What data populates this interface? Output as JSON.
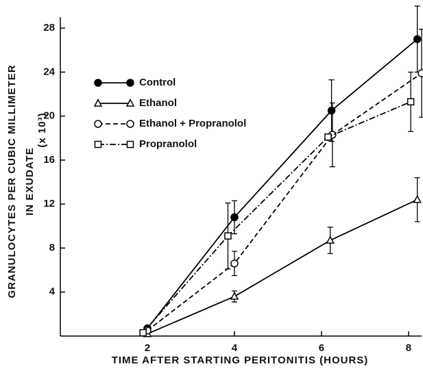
{
  "chart_data": {
    "type": "line",
    "ylabel": [
      "GRANULOCYTES PER CUBIC MILLIMETER",
      "IN EXUDATE"
    ],
    "yunit": "(x 10³)",
    "xlabel": "TIME AFTER STARTING PERITONITIS (HOURS)",
    "xlim": [
      0,
      8.3
    ],
    "ylim": [
      0,
      29
    ],
    "xticks": [
      2,
      4,
      6,
      8
    ],
    "yticks": [
      4,
      8,
      12,
      16,
      20,
      24,
      28
    ],
    "legend": "upper left",
    "series": [
      {
        "name": "Control",
        "color": "#000000",
        "marker": "filled-circle",
        "dash": "solid",
        "x": [
          2,
          4,
          6.23,
          8.2
        ],
        "values": [
          0.7,
          10.8,
          20.5,
          27
        ],
        "errors": [
          null,
          1.5,
          2.8,
          3
        ]
      },
      {
        "name": "Ethanol",
        "color": "#000000",
        "marker": "triangle",
        "dash": "solid",
        "x": [
          2,
          4,
          6.2,
          8.2
        ],
        "values": [
          0.2,
          3.6,
          8.7,
          12.4
        ],
        "errors": [
          null,
          0.5,
          1.2,
          2
        ]
      },
      {
        "name": "Ethanol + Propranolol",
        "color": "#000000",
        "marker": "open-circle",
        "dash": "dashed",
        "x": [
          2,
          4,
          6.25,
          8.3
        ],
        "values": [
          0.5,
          6.6,
          18.3,
          23.9
        ],
        "errors": [
          null,
          1.1,
          2.9,
          4
        ]
      },
      {
        "name": "Propranolol",
        "color": "#000000",
        "marker": "square",
        "dash": "dashdot",
        "x": [
          1.9,
          3.85,
          6.15,
          8.05
        ],
        "values": [
          0.3,
          9.1,
          18.1,
          21.3
        ],
        "errors": [
          null,
          3,
          null,
          2.7
        ]
      }
    ]
  }
}
